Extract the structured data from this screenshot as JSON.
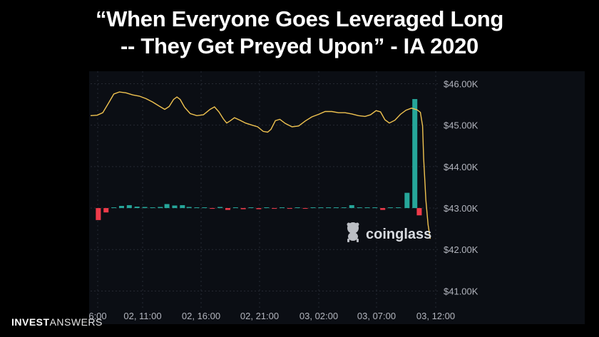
{
  "title_lines": [
    "“When Everyone Goes Leveraged Long",
    "-- They Get Preyed Upon” - IA 2020"
  ],
  "brand": {
    "part1": "INVEST",
    "part2": "ANSWERS"
  },
  "watermark": {
    "text": "coinglass",
    "icon": "coinglass-logo-icon"
  },
  "colors": {
    "price_line": "#f0c350",
    "long_bar": "#26a69a",
    "short_bar": "#ef3b4a",
    "grid": "#262a33",
    "tick_text": "#b2b5be",
    "panel_bg": "#0b0e14"
  },
  "chart_data": {
    "type": "line",
    "title": "",
    "xlabel": "",
    "ylabel": "",
    "x_ticks": [
      "6:00",
      "02, 11:00",
      "02, 16:00",
      "02, 21:00",
      "03, 02:00",
      "03, 07:00",
      "03, 12:00"
    ],
    "y_ticks": [
      "$46.00K",
      "$45.00K",
      "$44.00K",
      "$43.00K",
      "$42.00K",
      "$41.00K"
    ],
    "y_tick_values": [
      46000,
      45000,
      44000,
      43000,
      42000,
      41000
    ],
    "ylim": [
      40200,
      46300
    ],
    "x_hours_range": [
      6,
      36.8
    ],
    "grid": true,
    "series": [
      {
        "type": "line",
        "points": [
          [
            6.0,
            45230
          ],
          [
            6.6,
            45240
          ],
          [
            7.1,
            45300
          ],
          [
            7.6,
            45520
          ],
          [
            8.1,
            45750
          ],
          [
            8.6,
            45800
          ],
          [
            9.2,
            45780
          ],
          [
            9.8,
            45730
          ],
          [
            10.4,
            45700
          ],
          [
            11.0,
            45640
          ],
          [
            11.6,
            45560
          ],
          [
            12.2,
            45460
          ],
          [
            12.7,
            45380
          ],
          [
            13.1,
            45450
          ],
          [
            13.5,
            45620
          ],
          [
            13.8,
            45680
          ],
          [
            14.1,
            45620
          ],
          [
            14.5,
            45430
          ],
          [
            15.0,
            45280
          ],
          [
            15.6,
            45230
          ],
          [
            16.2,
            45250
          ],
          [
            16.8,
            45380
          ],
          [
            17.2,
            45440
          ],
          [
            17.6,
            45320
          ],
          [
            18.0,
            45150
          ],
          [
            18.3,
            45050
          ],
          [
            18.6,
            45100
          ],
          [
            19.0,
            45180
          ],
          [
            19.5,
            45120
          ],
          [
            20.0,
            45050
          ],
          [
            20.6,
            45000
          ],
          [
            21.1,
            44960
          ],
          [
            21.6,
            44850
          ],
          [
            22.0,
            44830
          ],
          [
            22.3,
            44900
          ],
          [
            22.7,
            45110
          ],
          [
            23.1,
            45140
          ],
          [
            23.6,
            45040
          ],
          [
            24.2,
            44960
          ],
          [
            24.8,
            44980
          ],
          [
            25.4,
            45100
          ],
          [
            26.0,
            45200
          ],
          [
            26.6,
            45260
          ],
          [
            27.2,
            45330
          ],
          [
            27.8,
            45330
          ],
          [
            28.4,
            45300
          ],
          [
            29.0,
            45300
          ],
          [
            29.6,
            45270
          ],
          [
            30.2,
            45230
          ],
          [
            30.8,
            45210
          ],
          [
            31.3,
            45250
          ],
          [
            31.8,
            45350
          ],
          [
            32.2,
            45320
          ],
          [
            32.6,
            45130
          ],
          [
            33.0,
            45050
          ],
          [
            33.5,
            45120
          ],
          [
            34.0,
            45260
          ],
          [
            34.5,
            45360
          ],
          [
            35.0,
            45410
          ],
          [
            35.5,
            45370
          ],
          [
            35.8,
            45310
          ],
          [
            36.0,
            44980
          ],
          [
            36.1,
            44200
          ],
          [
            36.3,
            43200
          ],
          [
            36.5,
            42600
          ],
          [
            36.7,
            42260
          ]
        ]
      },
      {
        "type": "bar",
        "name": "",
        "bars": [
          [
            6.7,
            -330
          ],
          [
            7.4,
            -120
          ],
          [
            8.1,
            20
          ],
          [
            8.8,
            60
          ],
          [
            9.5,
            80
          ],
          [
            10.2,
            40
          ],
          [
            10.9,
            30
          ],
          [
            11.6,
            20
          ],
          [
            12.3,
            30
          ],
          [
            12.9,
            110
          ],
          [
            13.6,
            70
          ],
          [
            14.3,
            80
          ],
          [
            14.9,
            30
          ],
          [
            15.6,
            20
          ],
          [
            16.3,
            20
          ],
          [
            17.0,
            -20
          ],
          [
            17.7,
            30
          ],
          [
            18.4,
            -50
          ],
          [
            19.1,
            20
          ],
          [
            19.8,
            -30
          ],
          [
            20.5,
            20
          ],
          [
            21.2,
            -30
          ],
          [
            21.9,
            20
          ],
          [
            22.6,
            -20
          ],
          [
            23.3,
            10
          ],
          [
            24.0,
            -20
          ],
          [
            24.7,
            10
          ],
          [
            25.4,
            -10
          ],
          [
            26.1,
            10
          ],
          [
            26.8,
            10
          ],
          [
            27.5,
            10
          ],
          [
            28.2,
            10
          ],
          [
            28.9,
            10
          ],
          [
            29.6,
            80
          ],
          [
            30.3,
            10
          ],
          [
            31.0,
            10
          ],
          [
            31.7,
            10
          ],
          [
            32.4,
            -50
          ],
          [
            33.1,
            10
          ],
          [
            33.8,
            20
          ],
          [
            34.6,
            420
          ],
          [
            35.3,
            3000
          ],
          [
            35.7,
            -200
          ]
        ]
      }
    ]
  }
}
